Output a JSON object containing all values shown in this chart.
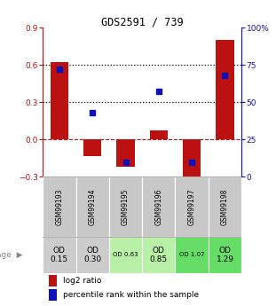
{
  "title": "GDS2591 / 739",
  "samples": [
    "GSM99193",
    "GSM99194",
    "GSM99195",
    "GSM99196",
    "GSM99197",
    "GSM99198"
  ],
  "log2_ratio": [
    0.62,
    -0.13,
    -0.22,
    0.07,
    -0.32,
    0.8
  ],
  "percentile_rank": [
    72,
    43,
    10,
    57,
    10,
    68
  ],
  "ylim_left": [
    -0.3,
    0.9
  ],
  "ylim_right": [
    0,
    100
  ],
  "yticks_left": [
    -0.3,
    0.0,
    0.3,
    0.6,
    0.9
  ],
  "yticks_right": [
    0,
    25,
    50,
    75,
    100
  ],
  "ytick_labels_right": [
    "0",
    "25",
    "50",
    "75",
    "100%"
  ],
  "hlines": [
    0.6,
    0.3
  ],
  "bar_color": "#bb1111",
  "dot_color": "#1111bb",
  "zero_line_color": "#bb1111",
  "hline_color": "#000000",
  "age_labels": [
    "OD\n0.15",
    "OD\n0.30",
    "OD 0.63",
    "OD\n0.85",
    "OD 1.07",
    "OD\n1.29"
  ],
  "age_bg_colors": [
    "#cccccc",
    "#cccccc",
    "#b8f0a8",
    "#b8f0a8",
    "#66dd66",
    "#66dd66"
  ],
  "age_large_idx": [
    0,
    1,
    3,
    5
  ],
  "sample_bg_color": "#c8c8c8",
  "legend_red": "log2 ratio",
  "legend_blue": "percentile rank within the sample"
}
